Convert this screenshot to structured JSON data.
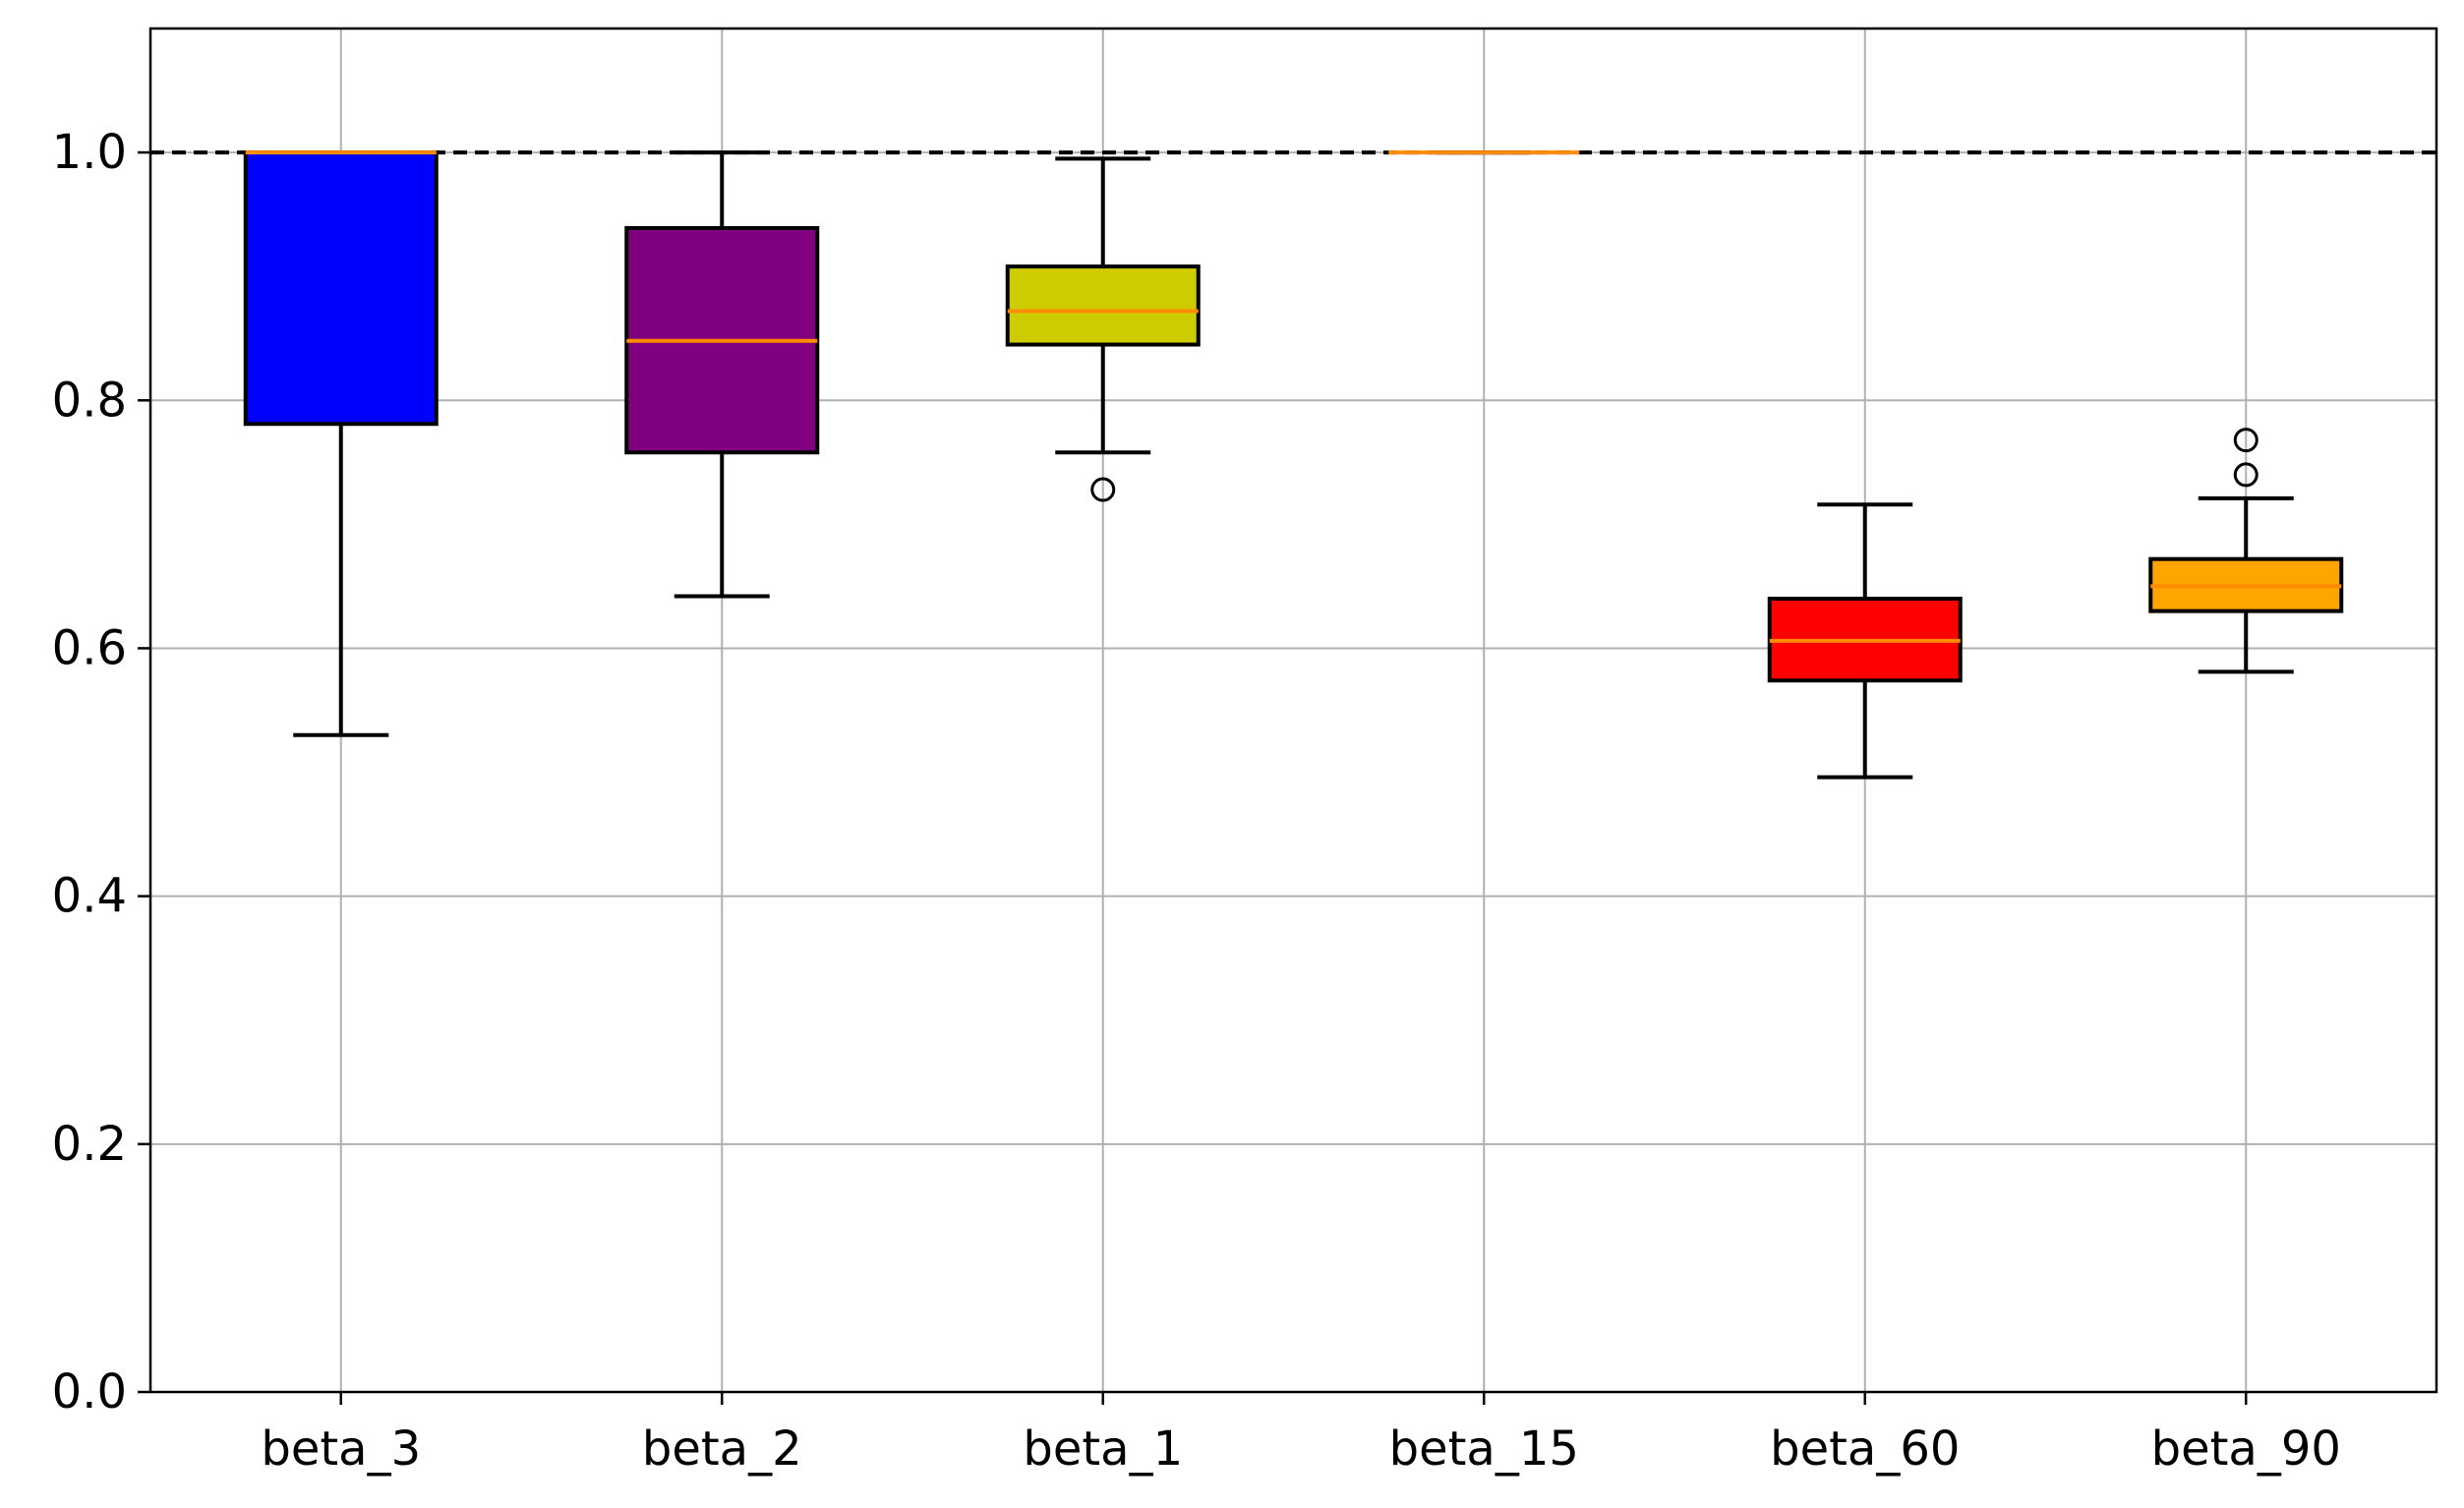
{
  "chart_data": {
    "type": "box",
    "categories": [
      "beta_3",
      "beta_2",
      "beta_1",
      "beta_15",
      "beta_60",
      "beta_90"
    ],
    "boxes": [
      {
        "label": "beta_3",
        "whislo": 0.53,
        "q1": 0.781,
        "med": 1.0,
        "q3": 1.0,
        "whishi": 1.0,
        "fliers": [],
        "color": "#0000ff"
      },
      {
        "label": "beta_2",
        "whislo": 0.642,
        "q1": 0.758,
        "med": 0.848,
        "q3": 0.939,
        "whishi": 1.0,
        "fliers": [],
        "color": "#800080"
      },
      {
        "label": "beta_1",
        "whislo": 0.758,
        "q1": 0.845,
        "med": 0.872,
        "q3": 0.908,
        "whishi": 0.995,
        "fliers": [
          0.728
        ],
        "color": "#cccc00"
      },
      {
        "label": "beta_15",
        "whislo": 1.0,
        "q1": 1.0,
        "med": 1.0,
        "q3": 1.0,
        "whishi": 1.0,
        "fliers": [],
        "color": "#ff8c00"
      },
      {
        "label": "beta_60",
        "whislo": 0.496,
        "q1": 0.574,
        "med": 0.606,
        "q3": 0.64,
        "whishi": 0.716,
        "fliers": [],
        "color": "#ff0000"
      },
      {
        "label": "beta_90",
        "whislo": 0.581,
        "q1": 0.63,
        "med": 0.65,
        "q3": 0.672,
        "whishi": 0.721,
        "fliers": [
          0.74,
          0.768
        ],
        "color": "#ffa500"
      }
    ],
    "reference_line": {
      "y": 1.0,
      "style": "dashed",
      "color": "#000000"
    },
    "median_color": "#ff8c00",
    "ylim": [
      0.0,
      1.1
    ],
    "yticks": [
      0.0,
      0.2,
      0.4,
      0.6,
      0.8,
      1.0
    ],
    "ytick_labels": [
      "0.0",
      "0.2",
      "0.4",
      "0.6",
      "0.8",
      "1.0"
    ],
    "grid": true,
    "title": "",
    "xlabel": "",
    "ylabel": ""
  }
}
